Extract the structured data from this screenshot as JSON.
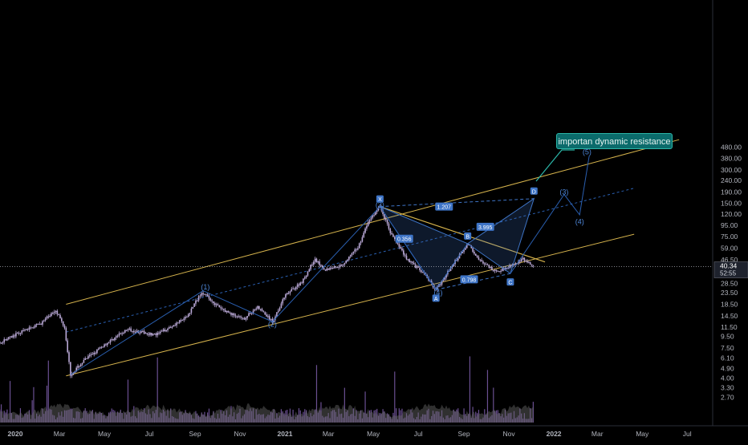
{
  "colors": {
    "background": "#000000",
    "axis_text": "#b2b5be",
    "candle": "#b9a8d6",
    "volume": "#6a4f91",
    "volume_area": "#6b6b6b",
    "channel": "#d4b24c",
    "pattern": "#3e74c6",
    "wave": "#2a5fb0",
    "callout": "#0b6b6b"
  },
  "price_scale": {
    "ticks": [
      "480.00",
      "380.00",
      "300.00",
      "240.00",
      "190.00",
      "150.00",
      "120.00",
      "95.00",
      "75.00",
      "59.00",
      "46.50",
      "36.50",
      "28.50",
      "23.50",
      "18.50",
      "14.50",
      "11.50",
      "9.50",
      "7.50",
      "6.10",
      "4.90",
      "4.00",
      "3.30",
      "2.70"
    ],
    "last_price": "40.34",
    "countdown": "52:55"
  },
  "time_scale": {
    "ticks": [
      "2020",
      "Mar",
      "May",
      "Jul",
      "Sep",
      "Nov",
      "2021",
      "Mar",
      "May",
      "Jul",
      "Sep",
      "Nov",
      "2022",
      "Mar",
      "May",
      "Jul"
    ]
  },
  "annotation": {
    "text": "importan dynamic resistance"
  },
  "chart_data": {
    "type": "candlestick",
    "scale": "log",
    "x_range": [
      "2019-11",
      "2022-08"
    ],
    "y_range": [
      2.4,
      520
    ],
    "grid": false,
    "price_path": [
      [
        "2019-11-15",
        9.0
      ],
      [
        "2019-12-10",
        8.3
      ],
      [
        "2020-01-10",
        10.5
      ],
      [
        "2020-02-05",
        12.5
      ],
      [
        "2020-02-25",
        16.5
      ],
      [
        "2020-03-08",
        11.5
      ],
      [
        "2020-03-16",
        4.3
      ],
      [
        "2020-04-05",
        5.9
      ],
      [
        "2020-05-01",
        8.0
      ],
      [
        "2020-06-01",
        11.0
      ],
      [
        "2020-07-10",
        9.8
      ],
      [
        "2020-08-20",
        14.0
      ],
      [
        "2020-09-10",
        24.0
      ],
      [
        "2020-10-05",
        17.0
      ],
      [
        "2020-11-05",
        13.5
      ],
      [
        "2020-11-25",
        17.5
      ],
      [
        "2020-12-15",
        12.9
      ],
      [
        "2021-01-01",
        22.0
      ],
      [
        "2021-01-25",
        30.0
      ],
      [
        "2021-02-10",
        47.0
      ],
      [
        "2021-02-25",
        38.0
      ],
      [
        "2021-03-20",
        42.0
      ],
      [
        "2021-04-10",
        60.0
      ],
      [
        "2021-04-25",
        105.0
      ],
      [
        "2021-05-10",
        140.0
      ],
      [
        "2021-05-25",
        80.0
      ],
      [
        "2021-06-15",
        48.0
      ],
      [
        "2021-07-10",
        34.0
      ],
      [
        "2021-07-25",
        25.0
      ],
      [
        "2021-08-20",
        45.0
      ],
      [
        "2021-09-06",
        65.0
      ],
      [
        "2021-09-25",
        44.0
      ],
      [
        "2021-10-15",
        36.0
      ],
      [
        "2021-11-05",
        42.0
      ],
      [
        "2021-11-20",
        47.0
      ],
      [
        "2021-12-05",
        40.34
      ]
    ],
    "wave_labels": [
      {
        "label": "(1)",
        "date": "2020-09-15",
        "price": 26.5
      },
      {
        "label": "(2)",
        "date": "2020-12-15",
        "price": 12.2
      },
      {
        "label": "(3)",
        "date": "2021-05-10",
        "price": 145.0
      },
      {
        "label": "(4)",
        "date": "2021-07-28",
        "price": 23.5
      },
      {
        "label": "(3)",
        "date": "2022-01-15",
        "price": 190.0
      },
      {
        "label": "(4)",
        "date": "2022-02-05",
        "price": 102.0
      },
      {
        "label": "(5)",
        "date": "2022-02-15",
        "price": 435.0
      }
    ],
    "pattern_points": [
      {
        "label": "X",
        "date": "2021-05-10",
        "price": 140.0
      },
      {
        "label": "A",
        "date": "2021-07-25",
        "price": 25.0
      },
      {
        "label": "B",
        "date": "2021-09-06",
        "price": 65.0
      },
      {
        "label": "C",
        "date": "2021-11-03",
        "price": 35.0
      },
      {
        "label": "D",
        "date": "2021-12-05",
        "price": 165.0
      }
    ],
    "ratios": [
      "1.207",
      "0.356",
      "3.995",
      "0.798"
    ]
  }
}
